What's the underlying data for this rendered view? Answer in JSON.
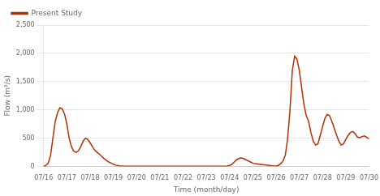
{
  "chart_data": {
    "type": "line",
    "xlabel": "Time (month/day)",
    "ylabel": "Flow (m³/s)",
    "x": [
      0.0,
      0.1,
      0.2,
      0.3,
      0.4,
      0.5,
      0.6,
      0.7,
      0.8,
      0.9,
      1.0,
      1.1,
      1.2,
      1.3,
      1.4,
      1.5,
      1.6,
      1.7,
      1.8,
      1.9,
      2.0,
      2.1,
      2.2,
      2.3,
      2.4,
      2.5,
      2.6,
      2.7,
      2.8,
      2.9,
      3.0,
      3.1,
      3.2,
      3.3,
      3.4,
      3.5,
      3.6,
      3.7,
      3.8,
      3.9,
      4.0,
      4.1,
      4.2,
      4.3,
      4.4,
      4.5,
      4.6,
      4.7,
      4.8,
      4.9,
      5.0,
      5.1,
      5.2,
      5.3,
      5.4,
      5.5,
      5.6,
      5.7,
      5.8,
      5.9,
      6.0,
      6.1,
      6.2,
      6.3,
      6.4,
      6.5,
      6.6,
      6.7,
      6.8,
      6.9,
      7.0,
      7.1,
      7.2,
      7.3,
      7.4,
      7.5,
      7.6,
      7.7,
      7.8,
      7.9,
      8.0,
      8.1,
      8.2,
      8.3,
      8.4,
      8.5,
      8.6,
      8.7,
      8.8,
      8.9,
      9.0,
      9.1,
      9.2,
      9.3,
      9.4,
      9.5,
      9.6,
      9.7,
      9.8,
      9.9,
      10.0,
      10.1,
      10.2,
      10.3,
      10.4,
      10.5,
      10.6,
      10.7,
      10.8,
      10.9,
      11.0,
      11.1,
      11.2,
      11.3,
      11.4,
      11.5,
      11.6,
      11.7,
      11.8,
      11.9,
      12.0,
      12.1,
      12.2,
      12.3,
      12.4,
      12.5,
      12.6,
      12.7,
      12.8,
      12.9,
      13.0,
      13.1,
      13.2,
      13.3,
      13.4,
      13.5,
      13.6,
      13.7,
      13.8,
      13.9,
      14.0
    ],
    "series": [
      {
        "name": "Present Study",
        "color": "#b33000",
        "values": [
          5,
          20,
          60,
          200,
          500,
          800,
          950,
          1040,
          1020,
          930,
          750,
          500,
          350,
          270,
          250,
          280,
          350,
          450,
          500,
          480,
          420,
          350,
          290,
          250,
          220,
          180,
          140,
          110,
          80,
          60,
          40,
          25,
          15,
          10,
          8,
          6,
          5,
          4,
          4,
          4,
          4,
          4,
          4,
          4,
          4,
          4,
          4,
          4,
          4,
          4,
          4,
          4,
          4,
          4,
          4,
          4,
          4,
          4,
          4,
          4,
          4,
          4,
          4,
          4,
          4,
          4,
          4,
          4,
          4,
          4,
          4,
          4,
          4,
          4,
          4,
          4,
          4,
          4,
          5,
          10,
          20,
          40,
          80,
          120,
          140,
          150,
          140,
          120,
          100,
          80,
          60,
          50,
          45,
          40,
          35,
          30,
          25,
          20,
          15,
          12,
          10,
          20,
          50,
          100,
          200,
          500,
          1000,
          1700,
          1950,
          1900,
          1700,
          1400,
          1100,
          900,
          800,
          600,
          450,
          380,
          400,
          550,
          700,
          850,
          920,
          900,
          800,
          680,
          560,
          450,
          380,
          400,
          480,
          550,
          600,
          620,
          580,
          520,
          510,
          530,
          540,
          520,
          490
        ]
      }
    ],
    "xlim": [
      0,
      14
    ],
    "xticks": [
      {
        "value": 0,
        "label": "07/16"
      },
      {
        "value": 1,
        "label": "07/17"
      },
      {
        "value": 2,
        "label": "07/18"
      },
      {
        "value": 3,
        "label": "07/19"
      },
      {
        "value": 4,
        "label": "07/20"
      },
      {
        "value": 5,
        "label": "07/21"
      },
      {
        "value": 6,
        "label": "07/22"
      },
      {
        "value": 7,
        "label": "07/23"
      },
      {
        "value": 8,
        "label": "07/24"
      },
      {
        "value": 9,
        "label": "07/25"
      },
      {
        "value": 10,
        "label": "07/26"
      },
      {
        "value": 11,
        "label": "07/27"
      },
      {
        "value": 12,
        "label": "07/28"
      },
      {
        "value": 13,
        "label": "07/29"
      },
      {
        "value": 14,
        "label": "07/30"
      }
    ],
    "ylim": [
      0,
      2500
    ],
    "yticks": [
      0,
      500,
      {
        "value": 1000,
        "label": "1,000"
      },
      {
        "value": 1500,
        "label": "1,500"
      },
      {
        "value": 2000,
        "label": "2,000"
      },
      {
        "value": 2500,
        "label": "2,500"
      }
    ],
    "grid": "y",
    "legend": "upper left"
  }
}
